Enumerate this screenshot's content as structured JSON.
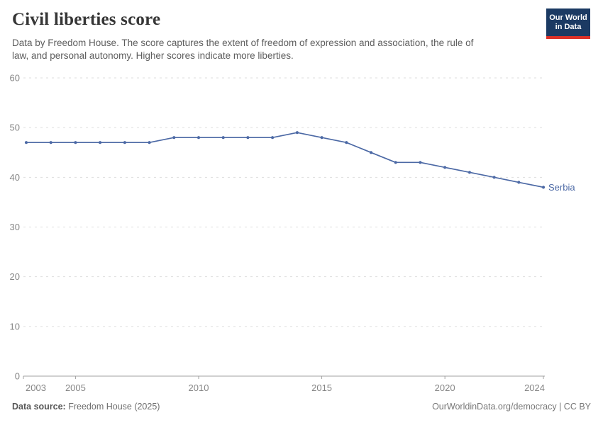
{
  "header": {
    "title": "Civil liberties score",
    "subtitle_line1": "Data by Freedom House. The score captures the extent of freedom of expression and association, the rule of",
    "subtitle_line2": "law, and personal autonomy. Higher scores indicate more liberties.",
    "logo": {
      "line1": "Our World",
      "line2": "in Data"
    }
  },
  "colors": {
    "series_blue": "#4c69a5",
    "logo_bg": "#1b3a63",
    "logo_bar": "#dc3128",
    "grid": "#dddddd",
    "axis": "#a1a1a1",
    "tick_label": "#868686",
    "title_text": "#363636",
    "subtitle_text": "#5d5d5d"
  },
  "chart_data": {
    "type": "line",
    "title": "Civil liberties score",
    "xlabel": "",
    "ylabel": "",
    "x": [
      2003,
      2004,
      2005,
      2006,
      2007,
      2008,
      2009,
      2010,
      2011,
      2012,
      2013,
      2014,
      2015,
      2016,
      2017,
      2018,
      2019,
      2020,
      2021,
      2022,
      2023,
      2024
    ],
    "series": [
      {
        "name": "Serbia",
        "color": "#4c69a5",
        "values": [
          47,
          47,
          47,
          47,
          47,
          47,
          48,
          48,
          48,
          48,
          48,
          49,
          48,
          47,
          45,
          43,
          43,
          42,
          41,
          40,
          39,
          38
        ]
      }
    ],
    "xlim": [
      2003,
      2024
    ],
    "ylim": [
      0,
      60
    ],
    "x_ticks": [
      2003,
      2005,
      2010,
      2015,
      2020,
      2024
    ],
    "y_ticks": [
      0,
      10,
      20,
      30,
      40,
      50,
      60
    ],
    "grid": "horizontal-dashed",
    "legend_position": "end-of-line"
  },
  "footer": {
    "source_label": "Data source:",
    "source_value": "Freedom House (2025)",
    "attribution": "OurWorldinData.org/democracy | CC BY"
  }
}
